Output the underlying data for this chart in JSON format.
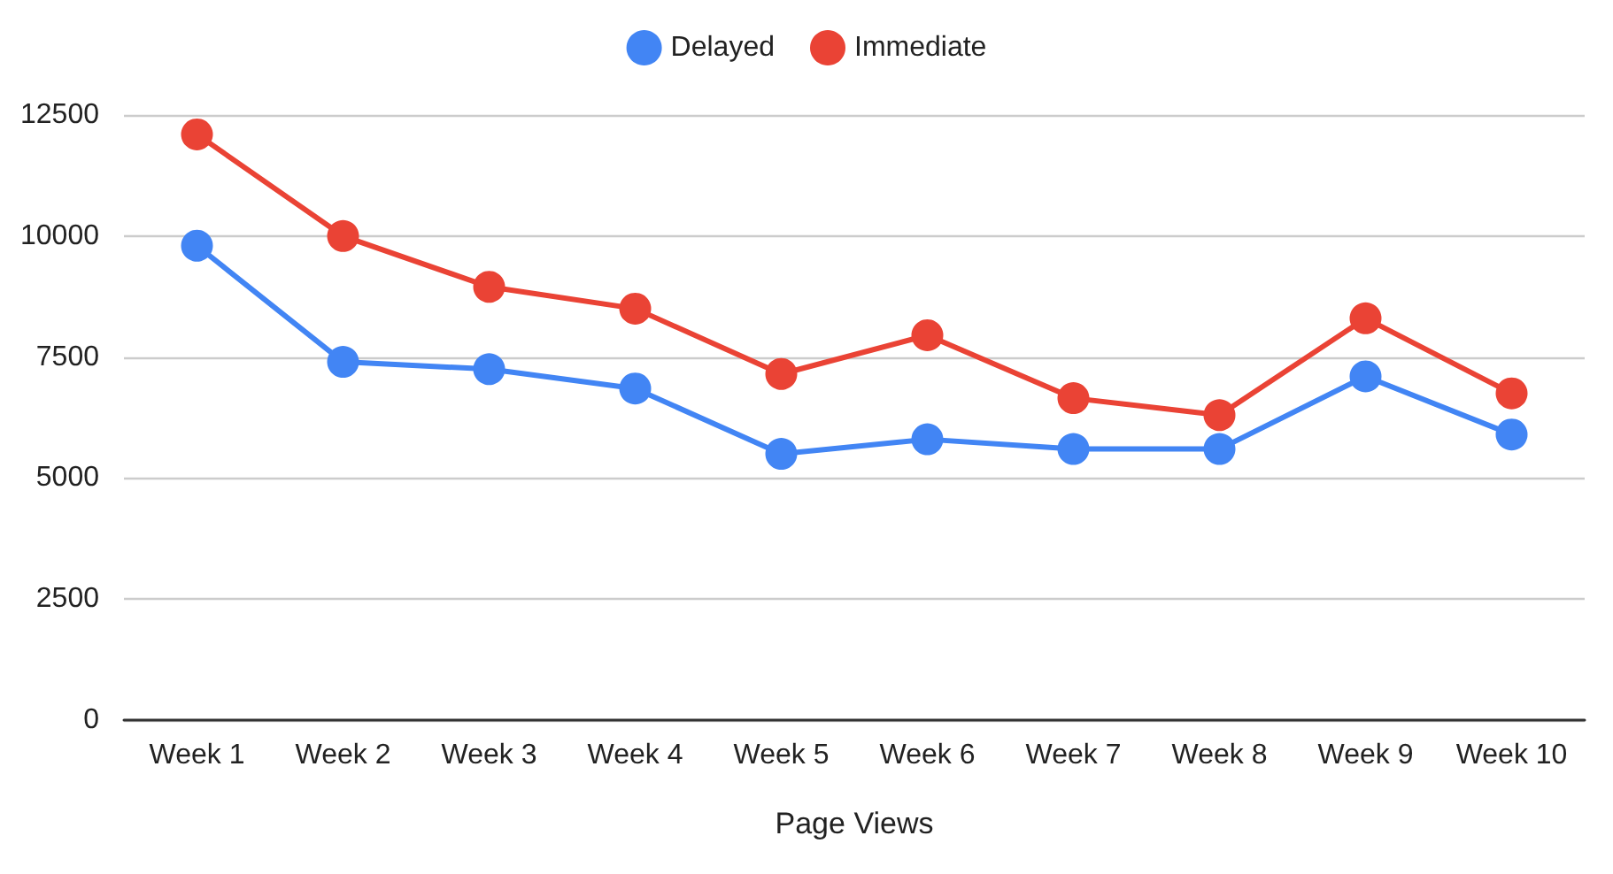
{
  "chart_data": {
    "type": "line",
    "xlabel": "Page Views",
    "categories": [
      "Week 1",
      "Week 2",
      "Week 3",
      "Week 4",
      "Week 5",
      "Week 6",
      "Week 7",
      "Week 8",
      "Week 9",
      "Week 10"
    ],
    "series": [
      {
        "name": "Delayed",
        "color": "#4285f4",
        "values": [
          9800,
          7400,
          7250,
          6850,
          5500,
          5800,
          5600,
          5600,
          7100,
          5900
        ]
      },
      {
        "name": "Immediate",
        "color": "#ea4335",
        "values": [
          12100,
          10000,
          8950,
          8500,
          7150,
          7950,
          6650,
          6300,
          8300,
          6750
        ]
      }
    ],
    "ylim": [
      0,
      12500
    ],
    "yticks": [
      0,
      2500,
      5000,
      7500,
      10000,
      12500
    ],
    "grid": "y",
    "legend": "top",
    "marker": "circle",
    "line_style": "solid"
  }
}
